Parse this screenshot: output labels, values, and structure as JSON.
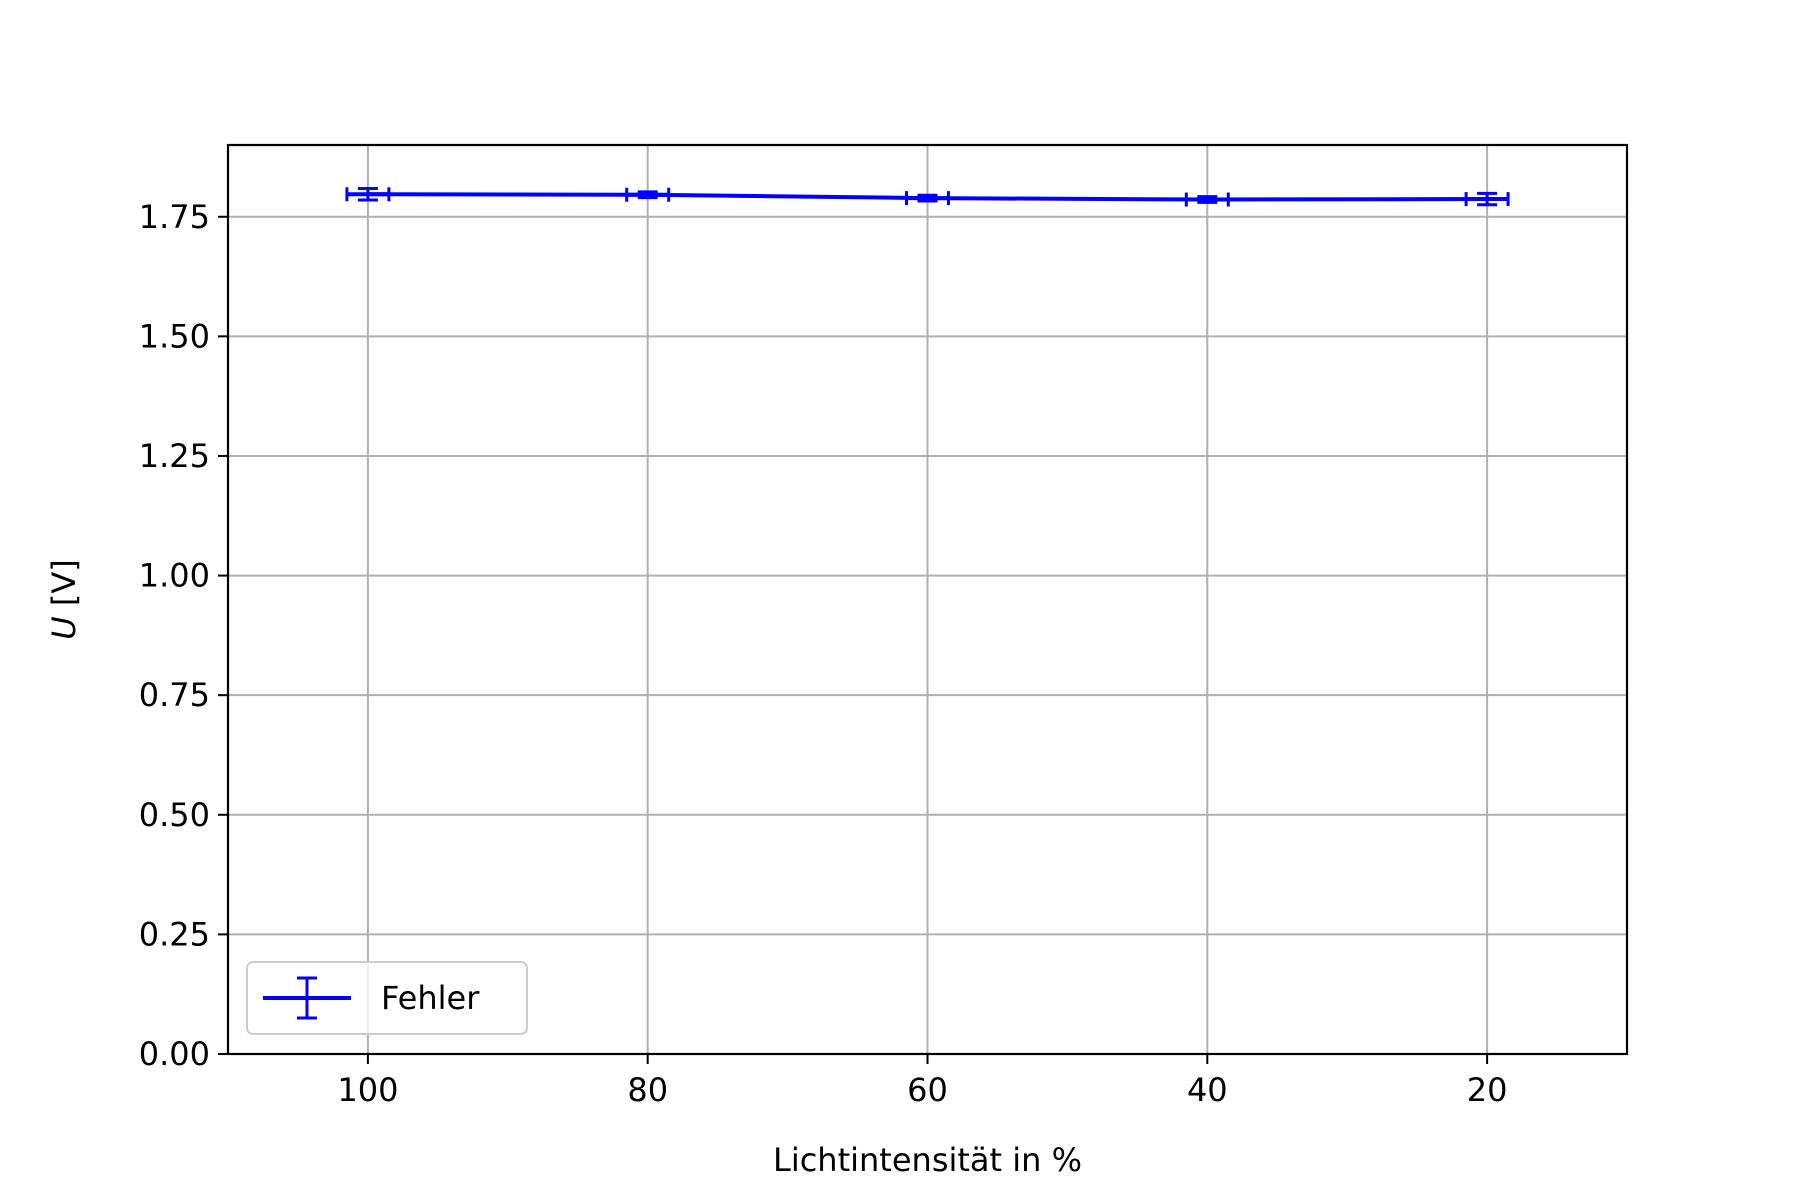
{
  "chart_data": {
    "type": "line",
    "xlabel": "Lichtintensität in %",
    "ylabel": "U [V]",
    "xlim": [
      110,
      10
    ],
    "ylim": [
      0,
      1.9
    ],
    "x_inverted": true,
    "grid": true,
    "legend_position": "lower-left",
    "x_ticks": [
      100,
      80,
      60,
      40,
      20
    ],
    "x_tick_labels": [
      "100",
      "80",
      "60",
      "40",
      "20"
    ],
    "y_ticks": [
      0,
      0.25,
      0.5,
      0.75,
      1.0,
      1.25,
      1.5,
      1.75
    ],
    "y_tick_labels": [
      "0.00",
      "0.25",
      "0.50",
      "0.75",
      "1.00",
      "1.25",
      "1.50",
      "1.75"
    ],
    "series": [
      {
        "name": "Fehler",
        "color": "#0000ff",
        "x": [
          100,
          80,
          60,
          40,
          20
        ],
        "y": [
          1.797,
          1.796,
          1.789,
          1.786,
          1.787
        ],
        "xerr": [
          1.5,
          1.5,
          1.5,
          1.5,
          1.5
        ],
        "yerr": [
          0.012,
          0.006,
          0.006,
          0.006,
          0.012
        ]
      }
    ]
  }
}
